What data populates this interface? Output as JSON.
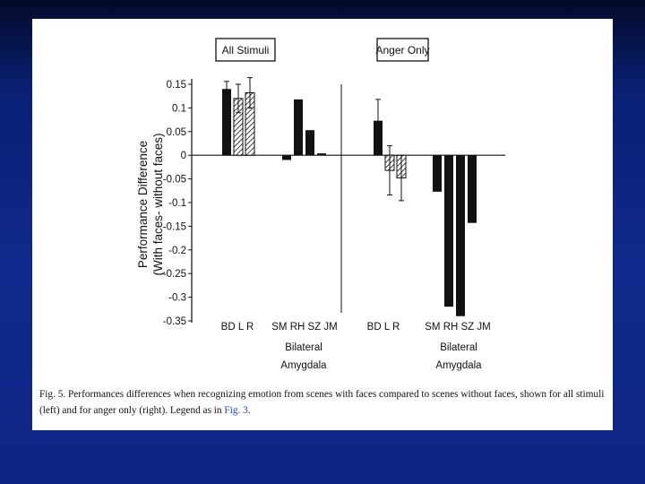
{
  "chart_data": {
    "type": "bar",
    "ylabel_lines": [
      "Performance Difference",
      "(With faces- without faces)"
    ],
    "ylim": [
      -0.35,
      0.15
    ],
    "yticks": [
      0.15,
      0.1,
      0.05,
      0,
      -0.05,
      -0.1,
      -0.15,
      -0.2,
      -0.25,
      -0.3,
      -0.35
    ],
    "ytick_labels": [
      "0.15",
      "0.1",
      "0.05",
      "0",
      "-0.05",
      "-0.1",
      "-0.15",
      "-0.2",
      "-0.25",
      "-0.3",
      "-0.35"
    ],
    "panels": [
      {
        "title": "All Stimuli",
        "groups": [
          {
            "categories": [
              "BD",
              "L",
              "R"
            ],
            "tick_label": "BD L  R",
            "group_label": [],
            "values": [
              0.14,
              0.12,
              0.132
            ],
            "styles": [
              "solid",
              "hatched",
              "hatched"
            ],
            "error_bars": [
              0.016,
              0.03,
              0.032
            ]
          },
          {
            "categories": [
              "SM",
              "RH",
              "SZ",
              "JM"
            ],
            "tick_label": "SM RH SZ JM",
            "group_label": [
              "Bilateral",
              "Amygdala"
            ],
            "values": [
              -0.01,
              0.118,
              0.053,
              0.004
            ],
            "styles": [
              "solid",
              "solid",
              "solid",
              "solid"
            ],
            "error_bars": [
              0,
              0,
              0,
              0
            ]
          }
        ]
      },
      {
        "title": "Anger Only",
        "groups": [
          {
            "categories": [
              "BD",
              "L",
              "R"
            ],
            "tick_label": "BD L  R",
            "group_label": [],
            "values": [
              0.073,
              -0.032,
              -0.048
            ],
            "styles": [
              "solid",
              "hatched",
              "hatched"
            ],
            "error_bars": [
              0.045,
              0.052,
              0.048
            ]
          },
          {
            "categories": [
              "SM",
              "RH",
              "SZ",
              "JM"
            ],
            "tick_label": "SM RH SZ JM",
            "group_label": [
              "Bilateral",
              "Amygdala"
            ],
            "values": [
              -0.077,
              -0.32,
              -0.34,
              -0.143
            ],
            "styles": [
              "solid",
              "solid",
              "solid",
              "solid"
            ],
            "error_bars": [
              0,
              0,
              0,
              0
            ]
          }
        ]
      }
    ]
  },
  "caption": {
    "text": "Fig. 5. Performances differences when recognizing emotion from scenes with faces compared to scenes without faces, shown for all stimuli (left) and for anger only (right). Legend as in ",
    "ref": "Fig. 3",
    "end": "."
  },
  "colors": {
    "bar": "#111111",
    "background": "#0f2a8c",
    "link": "#1a3ad8"
  }
}
